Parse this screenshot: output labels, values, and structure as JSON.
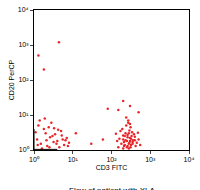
{
  "chart_data": {
    "type": "scatter",
    "title": "Flow of patient with XLA",
    "x_label": "CD3 FITC",
    "y_label": "CD20 PerCP",
    "log": true,
    "grid": false,
    "marker": "circle",
    "color": "#e8262a",
    "xlim": [
      1,
      10000
    ],
    "ylim": [
      1,
      10000
    ],
    "xticks": [
      {
        "value": 1,
        "label": "10⁰"
      },
      {
        "value": 10,
        "label": "10¹"
      },
      {
        "value": 100,
        "label": "10²"
      },
      {
        "value": 1000,
        "label": "10³"
      },
      {
        "value": 10000,
        "label": "10⁴"
      }
    ],
    "yticks": [
      {
        "value": 1,
        "label": "10⁰"
      },
      {
        "value": 10,
        "label": "10¹"
      },
      {
        "value": 100,
        "label": "10²"
      },
      {
        "value": 1000,
        "label": "10³"
      },
      {
        "value": 10000,
        "label": "10⁴"
      }
    ],
    "gates": {
      "x": 10,
      "y": 11
    },
    "x": [
      150,
      180,
      200,
      220,
      250,
      280,
      300,
      320,
      350,
      400,
      450,
      500,
      170,
      190,
      210,
      230,
      260,
      290,
      310,
      340,
      380,
      420,
      160,
      240,
      270,
      330,
      360,
      200,
      220,
      250,
      280,
      300,
      230,
      260,
      290,
      310,
      200,
      350,
      400,
      140,
      130,
      550,
      480,
      270,
      240,
      300,
      260,
      210,
      320,
      280,
      1.2,
      1.5,
      2,
      2.5,
      3,
      4,
      5,
      6,
      7,
      8,
      1.3,
      1.8,
      2.2,
      2.8,
      3.5,
      4.5,
      5.5,
      1.1,
      1.6,
      2.4,
      3.2,
      4.2,
      6.5,
      1.4,
      2.6,
      3.8,
      1.9,
      5.2,
      7.5,
      1.25,
      2.1,
      3.3,
      4.4,
      1.8,
      1.3,
      150,
      200,
      300,
      500,
      80,
      12,
      30,
      60
    ],
    "y": [
      1.2,
      1.5,
      2,
      2.5,
      1.8,
      3,
      2.2,
      1.4,
      1.7,
      2.4,
      1.6,
      2,
      3.5,
      4,
      1.3,
      1.9,
      2.7,
      1.6,
      4.5,
      3.2,
      2.8,
      1.3,
      2.1,
      5,
      6,
      2.5,
      1.9,
      1.1,
      1.4,
      1.2,
      1.5,
      1.8,
      3,
      2.3,
      3.6,
      1.2,
      2.6,
      1.5,
      1.9,
      1.8,
      2.9,
      1.4,
      3.1,
      7,
      8.5,
      5.5,
      1.3,
      1.7,
      2.1,
      1.1,
      2,
      1.5,
      3,
      1.2,
      2.5,
      1.8,
      3.5,
      1.4,
      2.2,
      1.6,
      5,
      4,
      1.3,
      6,
      2.8,
      1.2,
      2,
      3.2,
      1.1,
      4.5,
      1.7,
      3.8,
      1.9,
      7,
      2.3,
      1.5,
      8,
      2.6,
      1.3,
      1.4,
      1.9,
      4.2,
      1200,
      200,
      500,
      14,
      25,
      18,
      12,
      15,
      3,
      1.5,
      2
    ]
  }
}
